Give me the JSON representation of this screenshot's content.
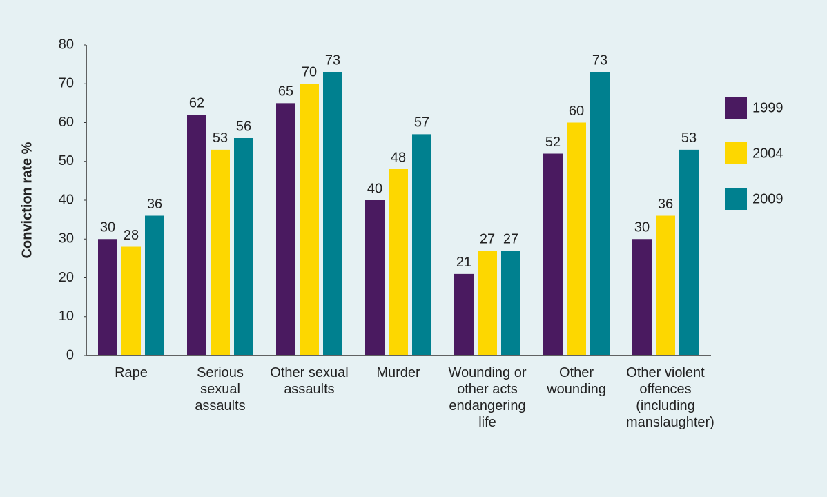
{
  "chart_data": {
    "type": "bar",
    "y_label": "Conviction rate  %",
    "categories": [
      "Rape",
      "Serious sexual assaults",
      "Other sexual assaults",
      "Murder",
      "Wounding or other acts endangering life",
      "Other wounding",
      "Other violent offences (including manslaughter)"
    ],
    "series": [
      {
        "name": "1999",
        "color": "#4a1a60",
        "values": [
          30,
          62,
          65,
          40,
          21,
          52,
          30
        ]
      },
      {
        "name": "2004",
        "color": "#fdd700",
        "values": [
          28,
          53,
          70,
          48,
          27,
          60,
          36
        ]
      },
      {
        "name": "2009",
        "color": "#00808f",
        "values": [
          36,
          56,
          73,
          57,
          27,
          73,
          53
        ]
      }
    ],
    "ylim": [
      0,
      80
    ],
    "yticks": [
      0,
      10,
      20,
      30,
      40,
      50,
      60,
      70,
      80
    ],
    "legend": "right"
  }
}
